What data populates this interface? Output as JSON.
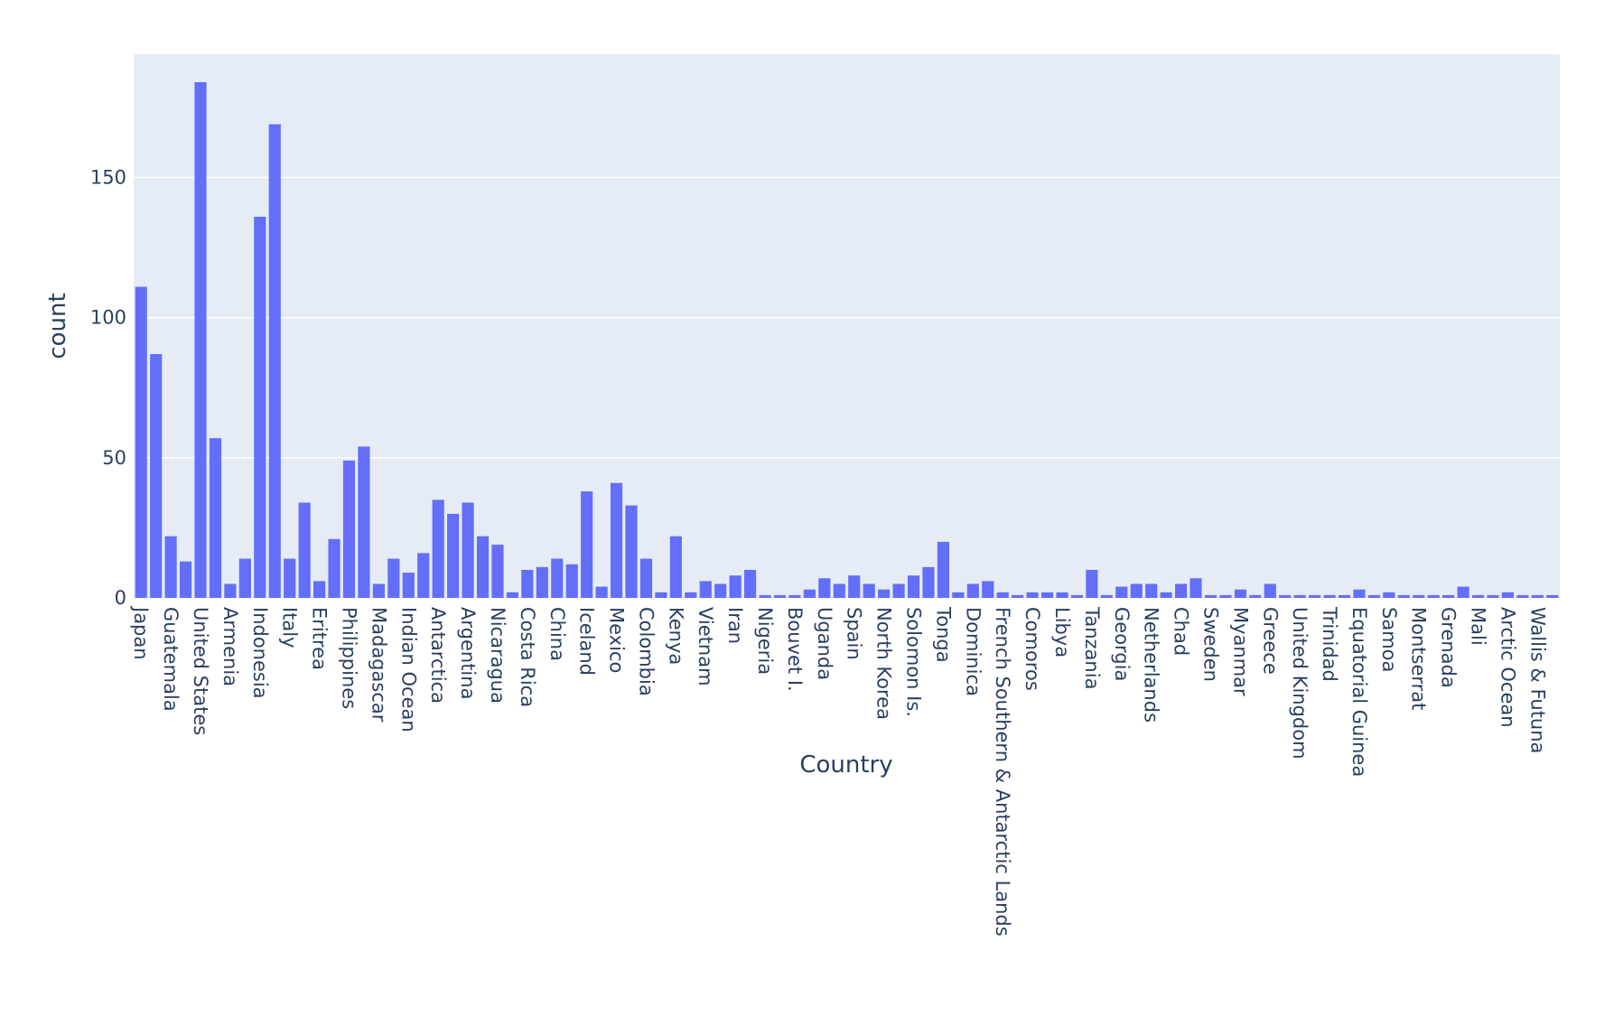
{
  "colors": {
    "plot_background": "#E5ECF6",
    "bar": "#636EFA",
    "grid": "#ffffff",
    "text": "#2a3f5f"
  },
  "chart_data": {
    "type": "bar",
    "xlabel": "Country",
    "ylabel": "count",
    "ylim": [
      0,
      194
    ],
    "grid": "horizontal",
    "yticks": [
      0,
      50,
      100,
      150
    ],
    "shown_tick_labels": [
      "Japan",
      "Guatemala",
      "United States",
      "Armenia",
      "Indonesia",
      "Italy",
      "Eritrea",
      "Philippines",
      "Madagascar",
      "Indian Ocean",
      "Antarctica",
      "Argentina",
      "Nicaragua",
      "Costa Rica",
      "China",
      "Iceland",
      "Mexico",
      "Colombia",
      "Kenya",
      "Vietnam",
      "Iran",
      "Nigeria",
      "Bouvet I.",
      "Uganda",
      "Spain",
      "North Korea",
      "Solomon Is.",
      "Tonga",
      "Dominica",
      "French Southern & Antarctic Lands",
      "Comoros",
      "Libya",
      "Tanzania",
      "Georgia",
      "Netherlands",
      "Chad",
      "Sweden",
      "Myanmar",
      "Greece",
      "United Kingdom",
      "Trinidad",
      "Equatorial Guinea",
      "Samoa",
      "Montserrat",
      "Grenada",
      "Mali",
      "Arctic Ocean",
      "Wallis & Futuna"
    ],
    "tick_every": 2,
    "values": [
      111,
      87,
      22,
      13,
      184,
      57,
      5,
      14,
      136,
      169,
      14,
      34,
      6,
      21,
      49,
      54,
      5,
      14,
      9,
      16,
      35,
      30,
      34,
      22,
      19,
      2,
      10,
      11,
      14,
      12,
      38,
      4,
      41,
      33,
      14,
      2,
      22,
      2,
      6,
      5,
      8,
      10,
      1,
      1,
      1,
      3,
      7,
      5,
      8,
      5,
      3,
      5,
      8,
      11,
      20,
      2,
      5,
      6,
      2,
      1,
      2,
      2,
      2,
      1,
      10,
      1,
      4,
      5,
      5,
      2,
      5,
      7,
      1,
      1,
      3,
      1,
      5,
      1,
      1,
      1,
      1,
      1,
      3,
      1,
      2,
      1,
      1,
      1,
      1,
      4,
      1,
      1,
      2,
      1,
      1,
      1
    ]
  }
}
